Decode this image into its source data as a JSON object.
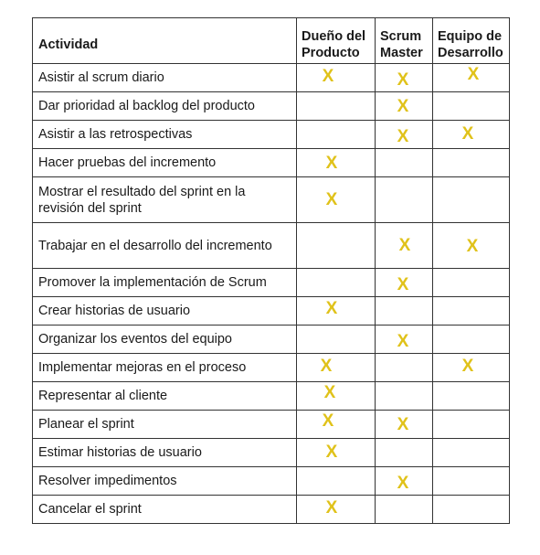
{
  "headers": {
    "activity": "Actividad",
    "product_owner": [
      "Dueño del",
      "Producto"
    ],
    "scrum_master": [
      "Scrum",
      "Master"
    ],
    "dev_team": [
      "Equipo de",
      "Desarrollo"
    ]
  },
  "mark": "X",
  "colors": {
    "mark": "#e0c21a",
    "border": "#333333",
    "text": "#1a1a1a"
  },
  "rows": [
    {
      "activity": "Asistir al scrum diario",
      "po": true,
      "sm": true,
      "dev": true
    },
    {
      "activity": "Dar prioridad al backlog del producto",
      "po": false,
      "sm": true,
      "dev": false
    },
    {
      "activity": "Asistir a las retrospectivas",
      "po": false,
      "sm": true,
      "dev": true
    },
    {
      "activity": "Hacer pruebas del incremento",
      "po": true,
      "sm": false,
      "dev": false
    },
    {
      "activity": "Mostrar el resultado del sprint en la revisión del sprint",
      "po": true,
      "sm": false,
      "dev": false
    },
    {
      "activity": "Trabajar en el desarrollo del incremento",
      "po": false,
      "sm": true,
      "dev": true
    },
    {
      "activity": "Promover la implementación de Scrum",
      "po": false,
      "sm": true,
      "dev": false
    },
    {
      "activity": "Crear historias de usuario",
      "po": true,
      "sm": false,
      "dev": false
    },
    {
      "activity": "Organizar los eventos del equipo",
      "po": false,
      "sm": true,
      "dev": false
    },
    {
      "activity": "Implementar mejoras en el proceso",
      "po": true,
      "sm": false,
      "dev": true
    },
    {
      "activity": "Representar al cliente",
      "po": true,
      "sm": false,
      "dev": false
    },
    {
      "activity": "Planear el sprint",
      "po": true,
      "sm": true,
      "dev": false
    },
    {
      "activity": "Estimar historias de usuario",
      "po": true,
      "sm": false,
      "dev": false
    },
    {
      "activity": "Resolver impedimentos",
      "po": false,
      "sm": true,
      "dev": false
    },
    {
      "activity": "Cancelar el sprint",
      "po": true,
      "sm": false,
      "dev": false
    }
  ]
}
